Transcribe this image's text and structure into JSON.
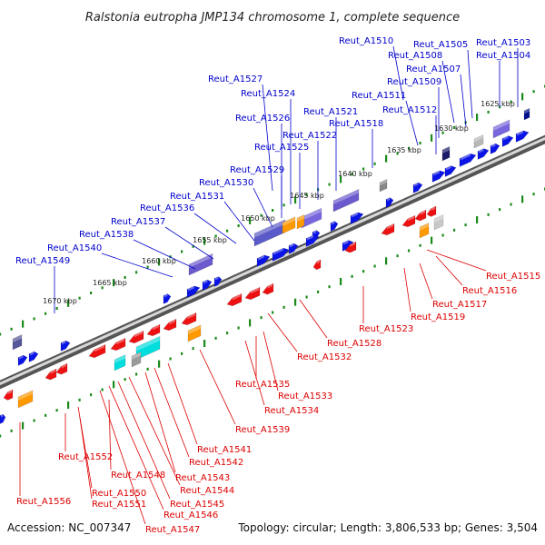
{
  "title": "Ralstonia eutropha JMP134 chromosome 1, complete sequence",
  "footer": {
    "accession": "Accession: NC_007347",
    "topology": "Topology: circular; Length: 3,806,533 bp; Genes: 3,504"
  },
  "colors": {
    "forward_label": "#0000cc",
    "reverse_label": "#dd0000",
    "forward_gene": "#0a14e6",
    "reverse_gene": "#ee1111",
    "tick": "#1a8a1a",
    "backbone": "#888888",
    "orange": "#ff9900",
    "cyan": "#00dddd",
    "purple": "#6a5acd",
    "gray": "#a0a0a0"
  },
  "kbp_marks": [
    "1625 kbp",
    "1630 kbp",
    "1635 kbp",
    "1640 kbp",
    "1645 kbp",
    "1650 kbp",
    "1655 kbp",
    "1660 kbp",
    "1665 kbp",
    "1670 kbp"
  ],
  "forward_labels": [
    "Reut_A1510",
    "Reut_A1505",
    "Reut_A1503",
    "Reut_A1508",
    "Reut_A1504",
    "Reut_A1507",
    "Reut_A1509",
    "Reut_A1527",
    "Reut_A1511",
    "Reut_A1524",
    "Reut_A1512",
    "Reut_A1521",
    "Reut_A1526",
    "Reut_A1518",
    "Reut_A1522",
    "Reut_A1525",
    "Reut_A1529",
    "Reut_A1530",
    "Reut_A1531",
    "Reut_A1536",
    "Reut_A1537",
    "Reut_A1538",
    "Reut_A1540",
    "Reut_A1549"
  ],
  "reverse_labels": [
    "Reut_A1515",
    "Reut_A1516",
    "Reut_A1517",
    "Reut_A1519",
    "Reut_A1523",
    "Reut_A1528",
    "Reut_A1532",
    "Reut_A1535",
    "Reut_A1533",
    "Reut_A1534",
    "Reut_A1539",
    "Reut_A1541",
    "Reut_A1552",
    "Reut_A1542",
    "Reut_A1548",
    "Reut_A1543",
    "Reut_A1550",
    "Reut_A1544",
    "Reut_A1551",
    "Reut_A1545",
    "Reut_A1556",
    "Reut_A1546",
    "Reut_A1547"
  ]
}
